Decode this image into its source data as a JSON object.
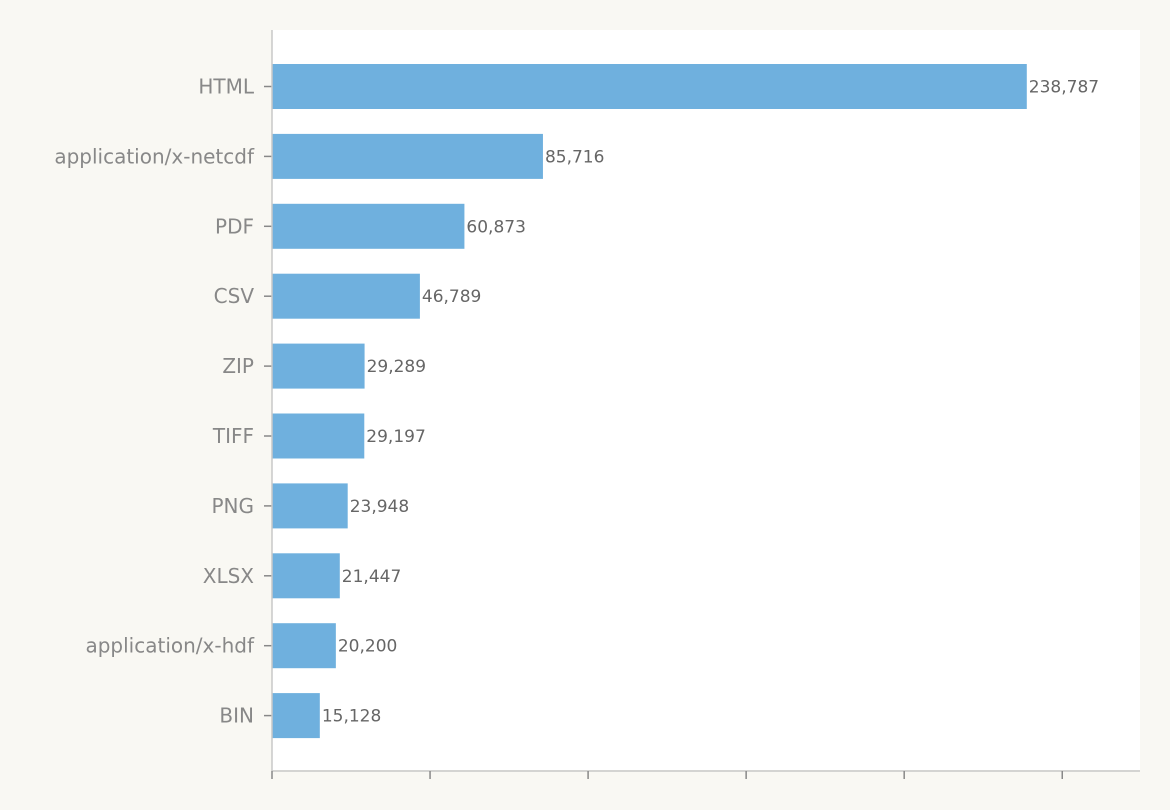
{
  "chart_data": {
    "type": "bar",
    "orientation": "horizontal",
    "categories": [
      "HTML",
      "application/x-netcdf",
      "PDF",
      "CSV",
      "ZIP",
      "TIFF",
      "PNG",
      "XLSX",
      "application/x-hdf",
      "BIN"
    ],
    "values": [
      238787,
      85716,
      60873,
      46789,
      29289,
      29197,
      23948,
      21447,
      20200,
      15128
    ],
    "data_labels": [
      "238,787",
      "85,716",
      "60,873",
      "46,789",
      "29,289",
      "29,197",
      "23,948",
      "21,447",
      "20,200",
      "15,128"
    ],
    "xlim": [
      0,
      274600
    ],
    "x_ticks": [
      0,
      50000,
      100000,
      150000,
      200000,
      250000
    ],
    "x_tick_labels_shown": false,
    "grid": false,
    "title": "",
    "xlabel": "",
    "ylabel": "",
    "colors": {
      "bar": "#6fb0de",
      "background": "#f9f8f3",
      "plot_background": "#ffffff",
      "axis": "#c8c8c8",
      "label": "#888888",
      "value_label": "#666666"
    }
  }
}
